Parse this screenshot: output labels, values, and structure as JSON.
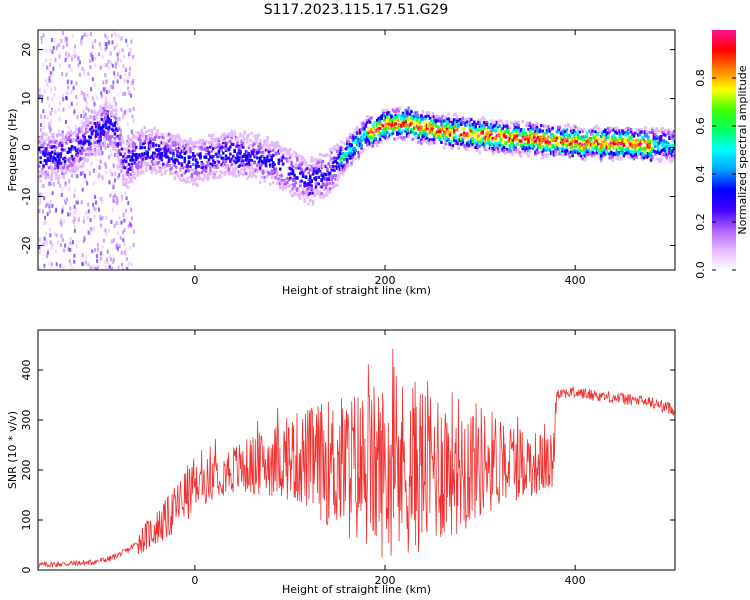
{
  "title": "S117.2023.115.17.51.G29",
  "colors": {
    "snr_line": "#f03030",
    "colormap": [
      "#ffffff",
      "#e6b8ff",
      "#b060ff",
      "#4000ff",
      "#0000ff",
      "#00a0ff",
      "#00ffff",
      "#00ff60",
      "#40ff00",
      "#ffff00",
      "#ff8000",
      "#ff0000",
      "#ff1493"
    ]
  },
  "chart_data": [
    {
      "type": "heatmap",
      "xlabel": "Height of straight line (km)",
      "ylabel": "Frequency (Hz)",
      "xlim": [
        -165,
        505
      ],
      "ylim": [
        -25,
        24
      ],
      "xticks": [
        0,
        200,
        400
      ],
      "yticks": [
        -20,
        -10,
        0,
        10,
        20
      ],
      "colorbar": {
        "label": "Normalized spectral amplitude",
        "range": [
          0,
          1
        ],
        "ticks": [
          0.0,
          0.2,
          0.4,
          0.6,
          0.8
        ]
      },
      "ridge": {
        "x": [
          -150,
          -130,
          -110,
          -95,
          -85,
          -75,
          -60,
          -40,
          -20,
          0,
          20,
          40,
          60,
          80,
          100,
          120,
          140,
          160,
          180,
          200,
          220,
          240,
          260,
          280,
          300,
          330,
          360,
          400,
          440,
          480,
          505
        ],
        "y": [
          -2,
          -1,
          2,
          5,
          4,
          -4,
          -1,
          -0.5,
          -2,
          -3,
          -2,
          -1,
          -2,
          -3,
          -5,
          -7,
          -5,
          -1,
          3,
          4.5,
          5,
          4,
          3.5,
          3,
          2.5,
          2,
          1.5,
          1,
          0.8,
          0.5,
          0.5
        ]
      }
    },
    {
      "type": "line",
      "xlabel": "Height of straight line (km)",
      "ylabel": "SNR (10 * v/v)",
      "xlim": [
        -165,
        505
      ],
      "ylim": [
        0,
        480
      ],
      "xticks": [
        0,
        200,
        400
      ],
      "yticks": [
        0,
        100,
        200,
        300,
        400
      ],
      "series": [
        {
          "color": "#f03030",
          "x": [
            -165,
            -140,
            -110,
            -90,
            -70,
            -50,
            -30,
            -10,
            0,
            10,
            25,
            50,
            75,
            100,
            125,
            150,
            175,
            200,
            225,
            250,
            275,
            300,
            325,
            350,
            370,
            377,
            380,
            400,
            420,
            440,
            460,
            480,
            505
          ],
          "y": [
            10,
            12,
            15,
            22,
            40,
            70,
            100,
            150,
            165,
            175,
            195,
            205,
            215,
            225,
            220,
            210,
            205,
            200,
            205,
            210,
            215,
            218,
            220,
            215,
            212,
            215,
            355,
            355,
            350,
            345,
            340,
            335,
            320
          ]
        }
      ]
    }
  ]
}
